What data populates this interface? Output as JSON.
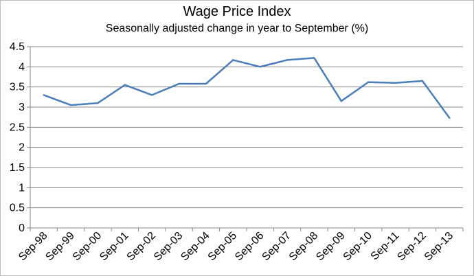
{
  "chart_data": {
    "type": "line",
    "title": "Wage Price Index",
    "subtitle": "Seasonally adjusted change in year to September (%)",
    "xlabel": "",
    "ylabel": "",
    "categories": [
      "Sep-98",
      "Sep-99",
      "Sep-00",
      "Sep-01",
      "Sep-02",
      "Sep-03",
      "Sep-04",
      "Sep-05",
      "Sep-06",
      "Sep-07",
      "Sep-08",
      "Sep-09",
      "Sep-10",
      "Sep-11",
      "Sep-12",
      "Sep-13"
    ],
    "series": [
      {
        "values": [
          3.3,
          3.05,
          3.1,
          3.55,
          3.3,
          3.58,
          3.58,
          4.17,
          4.0,
          4.17,
          4.22,
          3.15,
          3.62,
          3.6,
          3.65,
          2.73
        ]
      }
    ],
    "ylim": [
      0,
      4.5
    ],
    "yticks": [
      0,
      0.5,
      1,
      1.5,
      2,
      2.5,
      3,
      3.5,
      4,
      4.5
    ],
    "grid": true,
    "legend": "none",
    "colors": {
      "line": "#4a7ebb",
      "grid": "#868686",
      "axis": "#868686"
    }
  }
}
